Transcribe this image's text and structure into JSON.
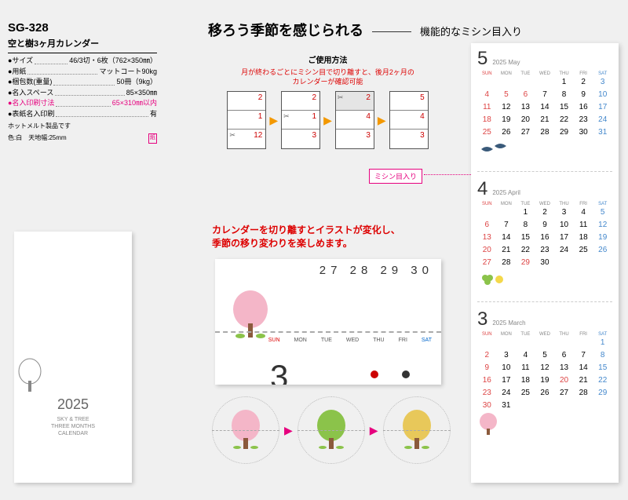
{
  "specs": {
    "code": "SG-328",
    "title": "空と樹3ヶ月カレンダー",
    "rows": [
      {
        "label": "●サイズ",
        "val": "46/3切・6枚（762×350㎜）"
      },
      {
        "label": "●用紙",
        "val": "マットコート90kg"
      },
      {
        "label": "●梱包数(重量)",
        "val": "50冊（9kg）"
      },
      {
        "label": "●名入スペース",
        "val": "85×350㎜"
      },
      {
        "label": "●名入印刷寸法",
        "val": "65×310㎜以内",
        "pink": true
      },
      {
        "label": "●表紙名入印刷",
        "val": "有"
      }
    ],
    "note1": "ホットメルト製品です",
    "note2": "色:白　天地幅:25mm",
    "badge": "紙"
  },
  "headline": {
    "main": "移ろう季節を感じられる",
    "sub": "機能的なミシン目入り"
  },
  "cover": {
    "year": "2025",
    "sub1": "SKY & TREE",
    "sub2": "THREE MONTHS",
    "sub3": "CALENDAR"
  },
  "usage": {
    "header": "ご使用方法",
    "red1": "月が終わるごとにミシン目で切り離すと、後月2ヶ月の",
    "red2": "カレンダーが確認可能"
  },
  "diag": {
    "sets": [
      [
        "2",
        "1",
        "12"
      ],
      [
        "2",
        "1",
        "3"
      ],
      [
        "2",
        "4",
        "3"
      ],
      [
        "5",
        "4",
        "3"
      ]
    ]
  },
  "perf_label": "ミシン目入り",
  "change": {
    "l1": "カレンダーを切り離すとイラストが変化し、",
    "l2": "季節の移り変わりを楽しめます。"
  },
  "detail": {
    "top": "27 28 29 30",
    "days": [
      "SUN",
      "MON",
      "TUE",
      "WED",
      "THU",
      "FRI",
      "SAT"
    ],
    "big": "3"
  },
  "tree_colors": {
    "spring": "#f4b6c8",
    "summer": "#8bc34a",
    "autumn": "#e8c85a",
    "trunk": "#8b5a3c"
  },
  "cal": {
    "months": [
      {
        "n": "5",
        "y": "2025",
        "name": "May",
        "first": 4,
        "days": 31,
        "hol": [
          5,
          6
        ],
        "ill": "swallow"
      },
      {
        "n": "4",
        "y": "2025",
        "name": "April",
        "first": 2,
        "days": 30,
        "hol": [
          29
        ],
        "ill": "clover"
      },
      {
        "n": "3",
        "y": "2025",
        "name": "March",
        "first": 6,
        "days": 31,
        "hol": [
          20
        ],
        "ill": "tree"
      }
    ],
    "dow": [
      "SUN",
      "MON",
      "TUE",
      "WED",
      "THU",
      "FRI",
      "SAT"
    ]
  }
}
